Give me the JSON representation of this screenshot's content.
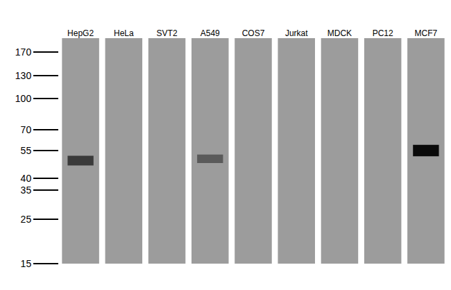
{
  "chart_data": {
    "type": "western_blot",
    "categories": [
      "HepG2",
      "HeLa",
      "SVT2",
      "A549",
      "COS7",
      "Jurkat",
      "MDCK",
      "PC12",
      "MCF7"
    ],
    "values": [
      49,
      null,
      null,
      50,
      null,
      null,
      null,
      null,
      55
    ],
    "colors": [
      "#3a3a3a",
      null,
      null,
      "#5a5a5a",
      null,
      null,
      null,
      null,
      "#0a0a0a"
    ],
    "color": "#9c9c9c",
    "log": "y",
    "ylim": [
      15,
      200
    ],
    "yticks": [
      170,
      130,
      100,
      70,
      55,
      40,
      35,
      25,
      15
    ],
    "grid": false
  }
}
